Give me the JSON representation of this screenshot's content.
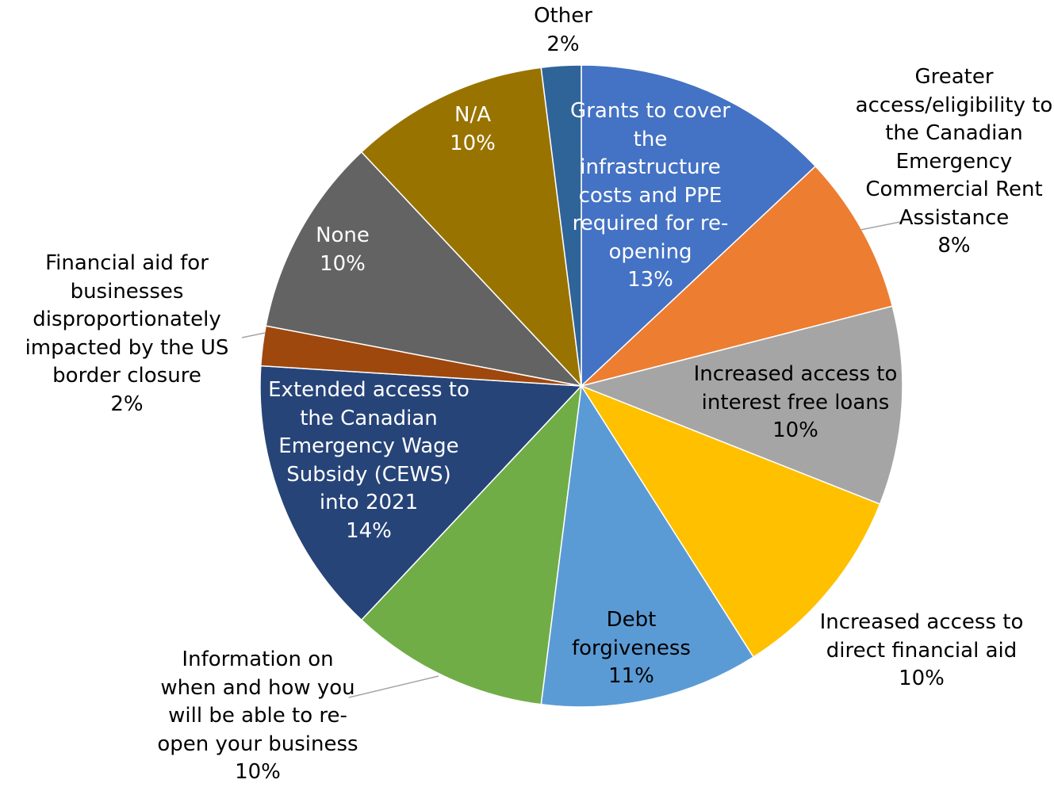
{
  "chart_data": {
    "type": "pie",
    "categories": [
      "Grants to cover the infrastructure costs and PPE required for re-opening",
      "Greater access/eligibility to the Canadian Emergency Commercial Rent Assistance",
      "Increased access to interest free loans",
      "Increased access to direct financial aid",
      "Debt forgiveness",
      "Information on when and how you will be able to re-open your business",
      "Extended access to the Canadian Emergency Wage Subsidy (CEWS) into 2021",
      "Financial aid for businesses disproportionately impacted by the US border closure",
      "None",
      "N/A",
      "Other"
    ],
    "values": [
      13,
      8,
      10,
      10,
      11,
      10,
      14,
      2,
      10,
      10,
      2
    ],
    "value_labels": [
      "13%",
      "8%",
      "10%",
      "10%",
      "11%",
      "10%",
      "14%",
      "2%",
      "10%",
      "10%",
      "2%"
    ],
    "colors": [
      "#4472c4",
      "#ed7d31",
      "#a5a5a5",
      "#ffc000",
      "#5b9bd5",
      "#70ad47",
      "#264478",
      "#9e480e",
      "#636363",
      "#997300",
      "#2f6499"
    ]
  }
}
